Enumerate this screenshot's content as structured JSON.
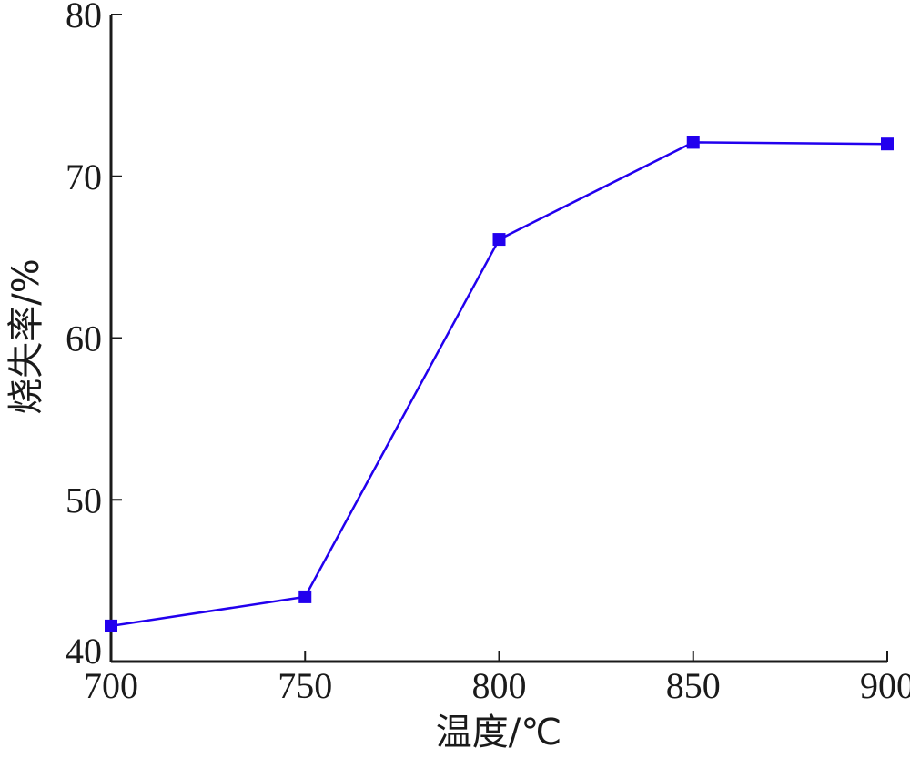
{
  "chart_data": {
    "type": "line",
    "title": "",
    "xlabel": "温度/℃",
    "ylabel": "烧失率/%",
    "x": [
      700,
      750,
      800,
      850,
      900
    ],
    "xlim": [
      700,
      900
    ],
    "ylim": [
      40,
      80
    ],
    "xticks": [
      700,
      750,
      800,
      850,
      900
    ],
    "yticks": [
      40,
      50,
      60,
      70,
      80
    ],
    "grid": false,
    "series": [
      {
        "x": [
          700,
          750,
          800,
          850,
          900
        ],
        "values": [
          42.2,
          44.0,
          66.1,
          72.1,
          72.0
        ],
        "color": "#2200ee",
        "marker": "square"
      }
    ]
  }
}
